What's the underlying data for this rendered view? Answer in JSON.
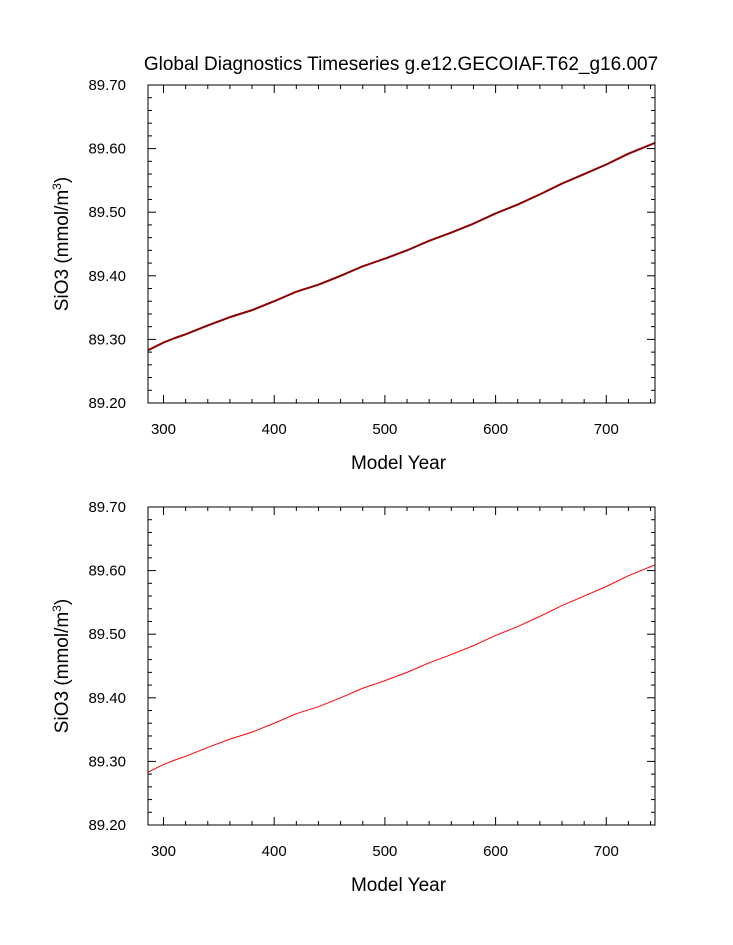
{
  "title": "Global Diagnostics Timeseries g.e12.GECOIAF.T62_g16.007",
  "chart_data": [
    {
      "type": "line",
      "xlabel": "Model Year",
      "ylabel_base": "SiO3 (mmol/m",
      "ylabel_sup": "3",
      "ylabel_close": ")",
      "xlim": [
        286,
        744
      ],
      "ylim": [
        89.2,
        89.7
      ],
      "xticks": [
        300,
        400,
        500,
        600,
        700
      ],
      "xtick_labels": [
        "300",
        "400",
        "500",
        "600",
        "700"
      ],
      "yticks": [
        89.2,
        89.3,
        89.4,
        89.5,
        89.6,
        89.7
      ],
      "ytick_labels": [
        "89.20",
        "89.30",
        "89.40",
        "89.50",
        "89.60",
        "89.70"
      ],
      "grid": false,
      "series": [
        {
          "color": "#8b0000",
          "x": [
            286,
            300,
            310,
            320,
            340,
            360,
            380,
            400,
            420,
            440,
            460,
            480,
            500,
            520,
            540,
            560,
            580,
            600,
            620,
            640,
            660,
            680,
            700,
            720,
            744
          ],
          "y": [
            89.283,
            89.295,
            89.302,
            89.308,
            89.322,
            89.335,
            89.346,
            89.36,
            89.375,
            89.386,
            89.4,
            89.415,
            89.427,
            89.44,
            89.455,
            89.468,
            89.482,
            89.498,
            89.512,
            89.528,
            89.545,
            89.56,
            89.575,
            89.592,
            89.609
          ]
        }
      ]
    },
    {
      "type": "line",
      "xlabel": "Model Year",
      "ylabel_base": "SiO3 (mmol/m",
      "ylabel_sup": "3",
      "ylabel_close": ")",
      "xlim": [
        286,
        744
      ],
      "ylim": [
        89.2,
        89.7
      ],
      "xticks": [
        300,
        400,
        500,
        600,
        700
      ],
      "xtick_labels": [
        "300",
        "400",
        "500",
        "600",
        "700"
      ],
      "yticks": [
        89.2,
        89.3,
        89.4,
        89.5,
        89.6,
        89.7
      ],
      "ytick_labels": [
        "89.20",
        "89.30",
        "89.40",
        "89.50",
        "89.60",
        "89.70"
      ],
      "grid": false,
      "series": [
        {
          "color": "#ff0000",
          "x": [
            286,
            300,
            310,
            320,
            340,
            360,
            380,
            400,
            420,
            440,
            460,
            480,
            500,
            520,
            540,
            560,
            580,
            600,
            620,
            640,
            660,
            680,
            700,
            720,
            744
          ],
          "y": [
            89.283,
            89.295,
            89.302,
            89.308,
            89.322,
            89.335,
            89.346,
            89.36,
            89.375,
            89.386,
            89.4,
            89.415,
            89.427,
            89.44,
            89.455,
            89.468,
            89.482,
            89.498,
            89.512,
            89.528,
            89.545,
            89.56,
            89.575,
            89.592,
            89.609
          ]
        }
      ]
    }
  ]
}
